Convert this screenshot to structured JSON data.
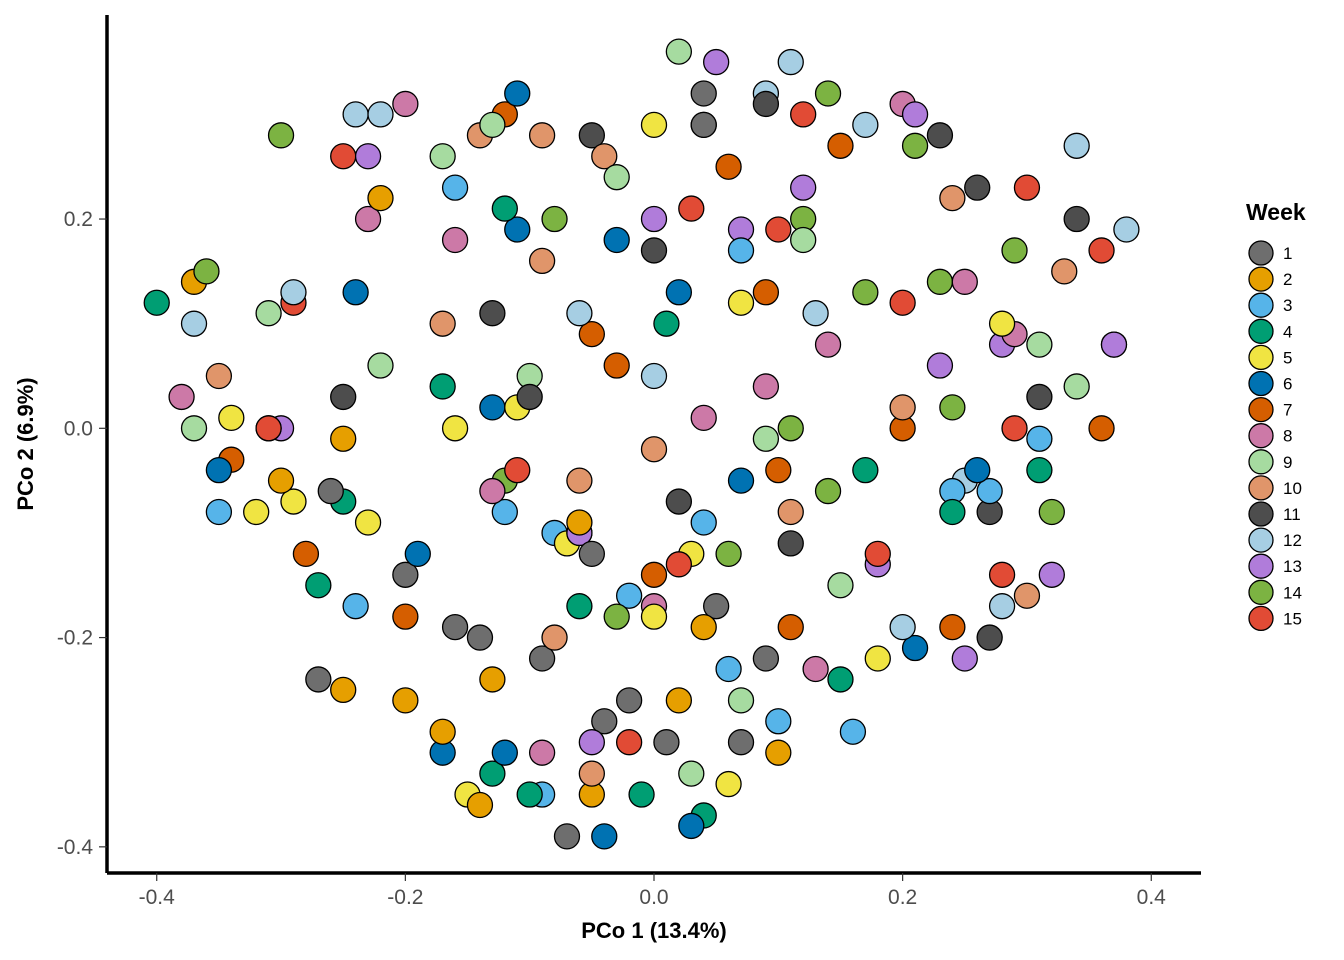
{
  "chart_data": {
    "type": "scatter",
    "xlabel": "PCo 1  (13.4%)",
    "ylabel": "PCo 2  (6.9%)",
    "xlim": [
      -0.44,
      0.44
    ],
    "ylim": [
      -0.425,
      0.395
    ],
    "xticks": [
      -0.4,
      -0.2,
      0.0,
      0.2,
      0.4
    ],
    "xtick_labels": [
      "-0.4",
      "-0.2",
      "0.0",
      "0.2",
      "0.4"
    ],
    "yticks": [
      -0.4,
      -0.2,
      0.0,
      0.2
    ],
    "ytick_labels": [
      "-0.4",
      "-0.2",
      "0.0",
      "0.2"
    ],
    "grid": false,
    "legend": {
      "title": "Week",
      "placement": "right"
    },
    "series": [
      {
        "name": "1",
        "color": "#6e6e6e",
        "points": [
          [
            -0.07,
            -0.39
          ],
          [
            0.04,
            0.32
          ],
          [
            0.04,
            0.29
          ],
          [
            0.07,
            -0.3
          ],
          [
            -0.27,
            -0.24
          ],
          [
            -0.16,
            -0.19
          ],
          [
            0.05,
            -0.17
          ],
          [
            -0.02,
            -0.26
          ],
          [
            0.01,
            -0.3
          ],
          [
            -0.09,
            -0.22
          ],
          [
            -0.2,
            -0.14
          ],
          [
            -0.26,
            -0.06
          ],
          [
            0.09,
            -0.22
          ],
          [
            -0.04,
            -0.28
          ],
          [
            -0.14,
            -0.2
          ],
          [
            -0.05,
            -0.12
          ]
        ]
      },
      {
        "name": "2",
        "color": "#e69f00",
        "points": [
          [
            -0.37,
            0.14
          ],
          [
            -0.25,
            -0.25
          ],
          [
            -0.2,
            -0.26
          ],
          [
            -0.14,
            -0.36
          ],
          [
            -0.05,
            -0.35
          ],
          [
            0.1,
            -0.31
          ],
          [
            -0.17,
            -0.29
          ],
          [
            -0.3,
            -0.05
          ],
          [
            -0.25,
            -0.01
          ],
          [
            -0.13,
            -0.24
          ],
          [
            0.04,
            -0.19
          ],
          [
            -0.22,
            0.22
          ],
          [
            -0.06,
            -0.09
          ],
          [
            0.02,
            -0.26
          ]
        ]
      },
      {
        "name": "3",
        "color": "#56b4e9",
        "points": [
          [
            -0.35,
            -0.08
          ],
          [
            0.04,
            -0.09
          ],
          [
            0.1,
            -0.28
          ],
          [
            0.16,
            -0.29
          ],
          [
            -0.08,
            -0.1
          ],
          [
            0.07,
            0.17
          ],
          [
            -0.24,
            -0.17
          ],
          [
            -0.16,
            0.23
          ],
          [
            0.27,
            -0.06
          ],
          [
            -0.02,
            -0.16
          ],
          [
            -0.12,
            -0.08
          ],
          [
            0.06,
            -0.23
          ],
          [
            0.31,
            -0.01
          ],
          [
            -0.09,
            -0.35
          ],
          [
            0.24,
            -0.06
          ]
        ]
      },
      {
        "name": "4",
        "color": "#009e73",
        "points": [
          [
            -0.4,
            0.12
          ],
          [
            -0.06,
            -0.17
          ],
          [
            0.01,
            0.1
          ],
          [
            -0.12,
            0.21
          ],
          [
            -0.17,
            0.04
          ],
          [
            0.31,
            -0.04
          ],
          [
            0.15,
            -0.24
          ],
          [
            -0.25,
            -0.07
          ],
          [
            -0.01,
            -0.35
          ],
          [
            -0.13,
            -0.33
          ],
          [
            0.04,
            -0.37
          ],
          [
            0.17,
            -0.04
          ],
          [
            -0.27,
            -0.15
          ],
          [
            -0.1,
            -0.35
          ],
          [
            0.24,
            -0.08
          ]
        ]
      },
      {
        "name": "5",
        "color": "#f0e442",
        "points": [
          [
            0.0,
            0.29
          ],
          [
            -0.29,
            -0.07
          ],
          [
            -0.15,
            -0.35
          ],
          [
            -0.32,
            -0.08
          ],
          [
            -0.07,
            -0.11
          ],
          [
            0.18,
            -0.22
          ],
          [
            -0.11,
            0.02
          ],
          [
            0.07,
            0.12
          ],
          [
            -0.34,
            0.01
          ],
          [
            0.06,
            -0.34
          ],
          [
            0.0,
            -0.18
          ],
          [
            -0.23,
            -0.09
          ],
          [
            -0.16,
            0.0
          ],
          [
            0.28,
            0.1
          ],
          [
            0.03,
            -0.12
          ]
        ]
      },
      {
        "name": "6",
        "color": "#0072b2",
        "points": [
          [
            -0.04,
            -0.39
          ],
          [
            -0.11,
            0.32
          ],
          [
            -0.11,
            0.19
          ],
          [
            0.02,
            0.13
          ],
          [
            -0.13,
            0.02
          ],
          [
            -0.17,
            -0.31
          ],
          [
            0.21,
            -0.21
          ],
          [
            0.07,
            -0.05
          ],
          [
            -0.31,
            0.0
          ],
          [
            -0.12,
            -0.31
          ],
          [
            -0.24,
            0.13
          ],
          [
            -0.03,
            0.18
          ],
          [
            -0.35,
            -0.04
          ],
          [
            0.03,
            -0.38
          ],
          [
            0.26,
            -0.04
          ],
          [
            -0.19,
            -0.12
          ]
        ]
      },
      {
        "name": "7",
        "color": "#d55e00",
        "points": [
          [
            -0.12,
            0.3
          ],
          [
            0.06,
            0.25
          ],
          [
            0.15,
            0.27
          ],
          [
            -0.28,
            -0.12
          ],
          [
            0.11,
            -0.19
          ],
          [
            0.09,
            0.13
          ],
          [
            -0.34,
            -0.03
          ],
          [
            -0.05,
            0.09
          ],
          [
            0.0,
            -0.14
          ],
          [
            -0.2,
            -0.18
          ],
          [
            0.36,
            0.0
          ],
          [
            0.2,
            0.0
          ],
          [
            -0.03,
            0.06
          ],
          [
            0.24,
            -0.19
          ],
          [
            0.1,
            -0.04
          ]
        ]
      },
      {
        "name": "8",
        "color": "#cc79a7",
        "points": [
          [
            -0.2,
            0.31
          ],
          [
            0.2,
            0.31
          ],
          [
            -0.16,
            0.18
          ],
          [
            0.09,
            0.04
          ],
          [
            -0.06,
            -0.1
          ],
          [
            0.0,
            -0.17
          ],
          [
            -0.09,
            -0.31
          ],
          [
            -0.23,
            0.2
          ],
          [
            0.14,
            0.08
          ],
          [
            0.04,
            0.01
          ],
          [
            0.29,
            0.09
          ],
          [
            -0.38,
            0.03
          ],
          [
            0.25,
            0.14
          ],
          [
            -0.13,
            -0.06
          ],
          [
            0.13,
            -0.23
          ]
        ]
      },
      {
        "name": "9",
        "color": "#a6dba0",
        "points": [
          [
            0.02,
            0.36
          ],
          [
            -0.13,
            0.29
          ],
          [
            -0.17,
            0.26
          ],
          [
            -0.03,
            0.24
          ],
          [
            0.07,
            -0.26
          ],
          [
            0.12,
            0.18
          ],
          [
            -0.37,
            0.0
          ],
          [
            0.31,
            0.08
          ],
          [
            -0.31,
            0.11
          ],
          [
            0.09,
            -0.01
          ],
          [
            -0.1,
            0.05
          ],
          [
            0.15,
            -0.15
          ],
          [
            0.34,
            0.04
          ],
          [
            -0.22,
            0.06
          ],
          [
            0.03,
            -0.33
          ]
        ]
      },
      {
        "name": "10",
        "color": "#e0956a",
        "points": [
          [
            -0.14,
            0.28
          ],
          [
            -0.09,
            0.28
          ],
          [
            -0.04,
            0.26
          ],
          [
            -0.09,
            0.16
          ],
          [
            0.24,
            0.22
          ],
          [
            -0.17,
            0.1
          ],
          [
            -0.06,
            -0.05
          ],
          [
            0.33,
            0.15
          ],
          [
            -0.35,
            0.05
          ],
          [
            -0.05,
            -0.33
          ],
          [
            0.3,
            -0.16
          ],
          [
            0.0,
            -0.02
          ],
          [
            -0.08,
            -0.2
          ],
          [
            0.2,
            0.02
          ],
          [
            0.11,
            -0.08
          ]
        ]
      },
      {
        "name": "11",
        "color": "#4d4d4d",
        "points": [
          [
            -0.05,
            0.28
          ],
          [
            0.04,
            0.29
          ],
          [
            0.09,
            0.31
          ],
          [
            0.23,
            0.28
          ],
          [
            0.26,
            0.23
          ],
          [
            0.34,
            0.2
          ],
          [
            0.27,
            -0.08
          ],
          [
            -0.13,
            0.11
          ],
          [
            0.0,
            0.17
          ],
          [
            -0.25,
            0.03
          ],
          [
            0.11,
            -0.11
          ],
          [
            -0.1,
            0.03
          ],
          [
            0.02,
            -0.07
          ],
          [
            0.31,
            0.03
          ],
          [
            0.27,
            -0.2
          ]
        ]
      },
      {
        "name": "12",
        "color": "#a6cee3",
        "points": [
          [
            0.11,
            0.35
          ],
          [
            0.09,
            0.32
          ],
          [
            -0.24,
            0.3
          ],
          [
            -0.22,
            0.3
          ],
          [
            0.34,
            0.27
          ],
          [
            0.38,
            0.19
          ],
          [
            0.17,
            0.29
          ],
          [
            -0.06,
            0.11
          ],
          [
            -0.29,
            0.13
          ],
          [
            0.0,
            0.05
          ],
          [
            0.13,
            0.11
          ],
          [
            -0.37,
            0.1
          ],
          [
            0.25,
            -0.05
          ],
          [
            0.28,
            -0.17
          ],
          [
            0.2,
            -0.19
          ]
        ]
      },
      {
        "name": "13",
        "color": "#b07cda",
        "points": [
          [
            0.05,
            0.35
          ],
          [
            0.21,
            0.3
          ],
          [
            -0.23,
            0.26
          ],
          [
            0.07,
            0.19
          ],
          [
            0.12,
            0.23
          ],
          [
            0.0,
            0.2
          ],
          [
            0.28,
            0.08
          ],
          [
            -0.3,
            0.0
          ],
          [
            0.23,
            0.06
          ],
          [
            -0.06,
            -0.1
          ],
          [
            0.18,
            -0.13
          ],
          [
            0.25,
            -0.22
          ],
          [
            0.32,
            -0.14
          ],
          [
            -0.05,
            -0.3
          ],
          [
            0.37,
            0.08
          ]
        ]
      },
      {
        "name": "14",
        "color": "#7cb342",
        "points": [
          [
            0.14,
            0.32
          ],
          [
            0.21,
            0.27
          ],
          [
            -0.3,
            0.28
          ],
          [
            0.12,
            0.2
          ],
          [
            -0.08,
            0.2
          ],
          [
            0.29,
            0.17
          ],
          [
            -0.36,
            0.15
          ],
          [
            0.17,
            0.13
          ],
          [
            0.23,
            0.14
          ],
          [
            0.11,
            0.0
          ],
          [
            0.24,
            0.02
          ],
          [
            -0.12,
            -0.05
          ],
          [
            0.32,
            -0.08
          ],
          [
            0.06,
            -0.12
          ],
          [
            -0.03,
            -0.18
          ],
          [
            0.14,
            -0.06
          ]
        ]
      },
      {
        "name": "15",
        "color": "#e14b35",
        "points": [
          [
            0.12,
            0.3
          ],
          [
            -0.25,
            0.26
          ],
          [
            0.3,
            0.23
          ],
          [
            0.1,
            0.19
          ],
          [
            0.03,
            0.21
          ],
          [
            0.36,
            0.17
          ],
          [
            -0.29,
            0.12
          ],
          [
            0.2,
            0.12
          ],
          [
            0.29,
            0.0
          ],
          [
            0.37,
            0.08
          ],
          [
            -0.31,
            0.0
          ],
          [
            -0.11,
            -0.04
          ],
          [
            0.18,
            -0.12
          ],
          [
            0.28,
            -0.14
          ],
          [
            0.02,
            -0.13
          ],
          [
            -0.02,
            -0.3
          ]
        ]
      }
    ]
  }
}
